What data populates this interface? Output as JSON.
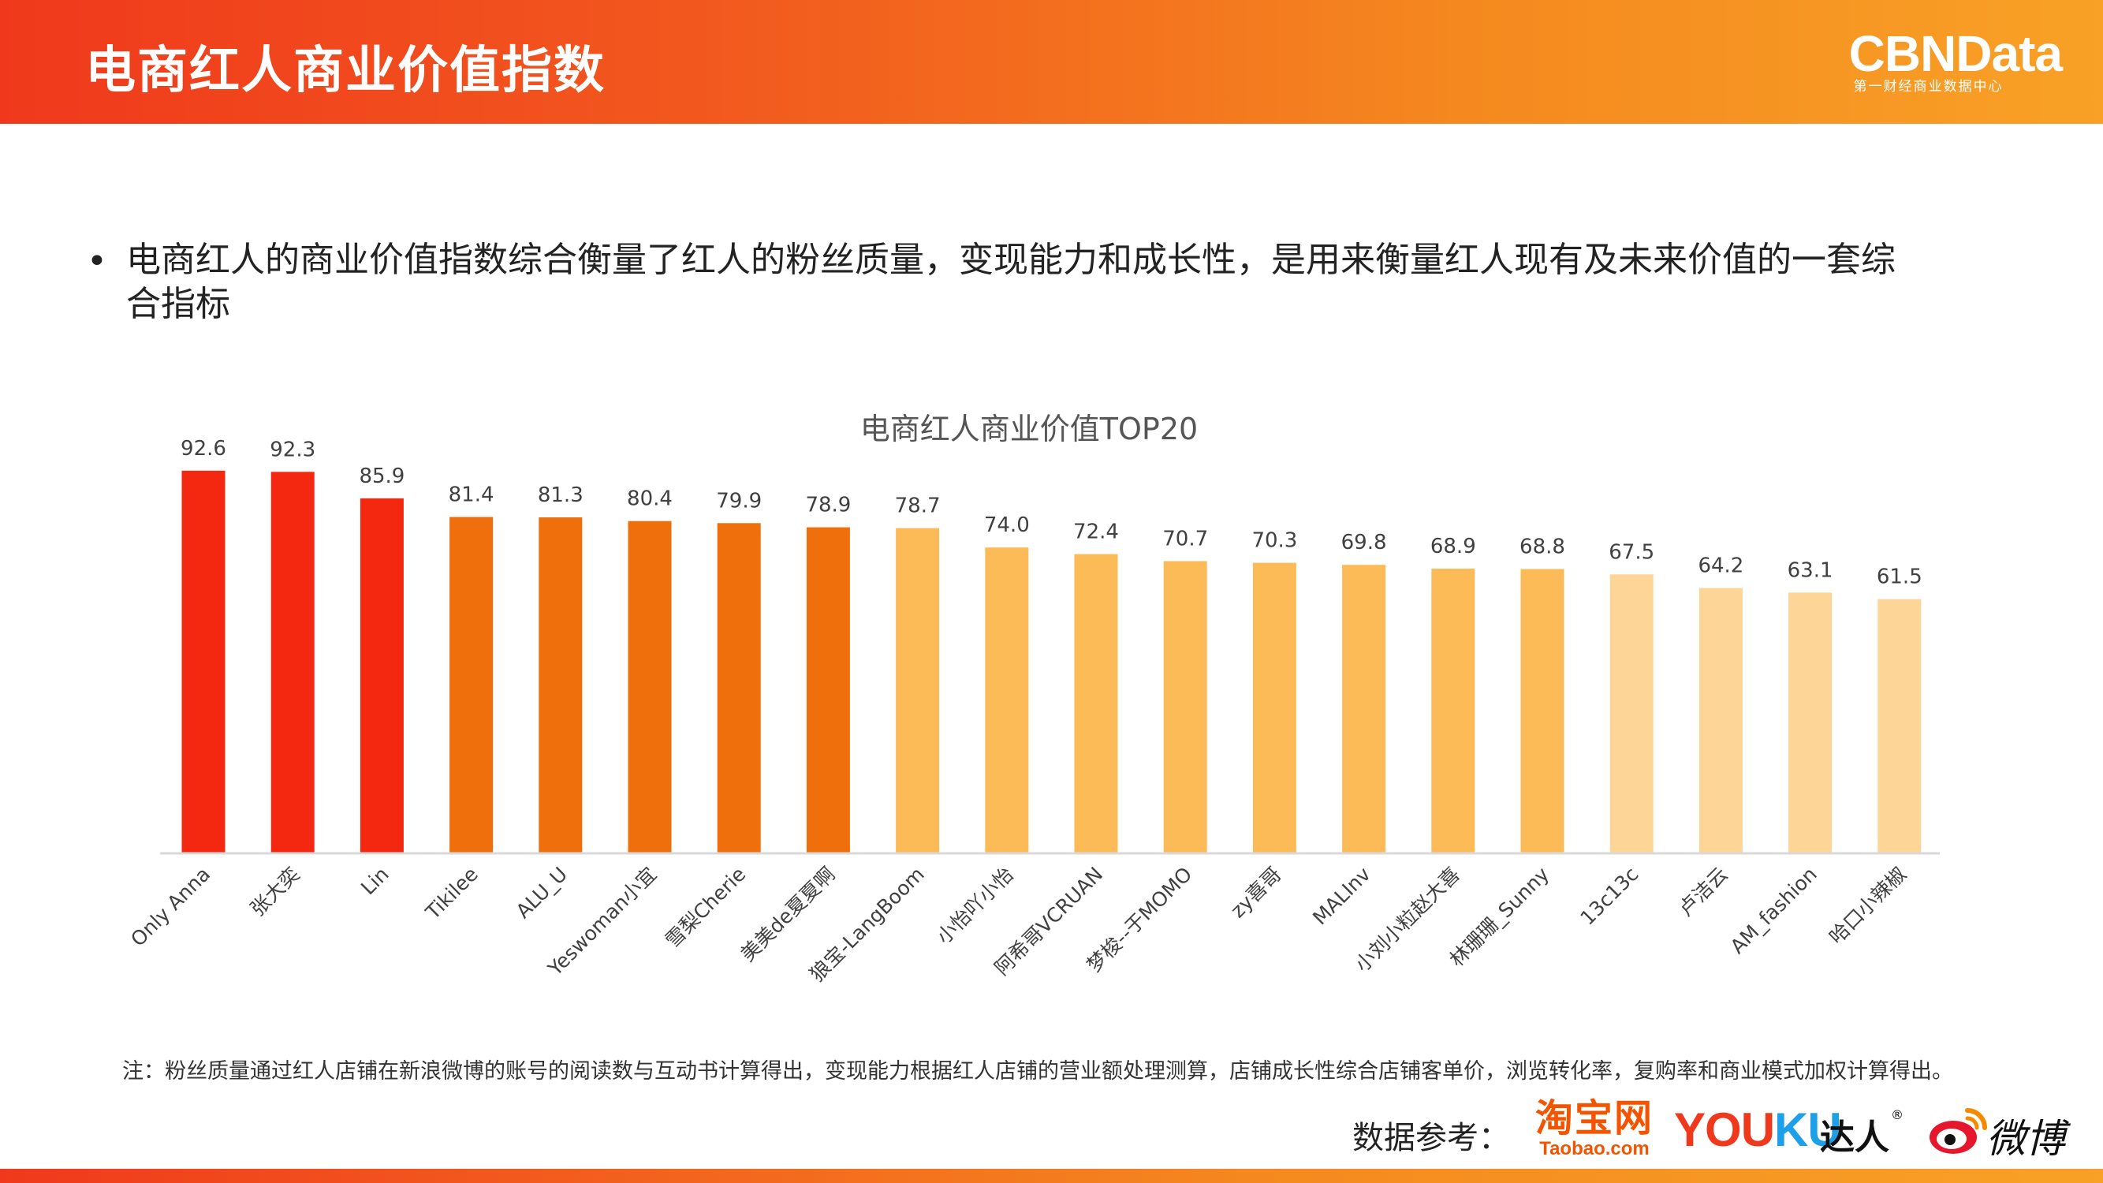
{
  "header": {
    "title": "电商红人商业价值指数"
  },
  "logo": {
    "main": "CBNData",
    "sub": "第一财经商业数据中心"
  },
  "intro": {
    "bullet": "•",
    "text": "电商红人的商业价值指数综合衡量了红人的粉丝质量，变现能力和成长性，是用来衡量红人现有及未来价值的一套综合指标"
  },
  "chart_data": {
    "type": "bar",
    "title": "电商红人商业价值TOP20",
    "xlabel": "",
    "ylabel": "",
    "grid": false,
    "legend": "none",
    "ylim": [
      0,
      100
    ],
    "categories": [
      "Only Anna",
      "张大奕",
      "Lin",
      "Tikilee",
      "ALU_U",
      "Yeswoman小宜",
      "雪梨Cherie",
      "美美de夏夏啊",
      "狼宝-LangBoom",
      "小怡吖小怡",
      "阿希哥VCRUAN",
      "梦梭--于MOMO",
      "zy喜哥",
      "MALInv",
      "小刘小粒赵大喜",
      "林珊珊_Sunny",
      "13c13c",
      "卢洁云",
      "AM_fashion",
      "哈口小辣椒"
    ],
    "values": [
      92.6,
      92.3,
      85.9,
      81.4,
      81.3,
      80.4,
      79.9,
      78.9,
      78.7,
      74.0,
      72.4,
      70.7,
      70.3,
      69.8,
      68.9,
      68.8,
      67.5,
      64.2,
      63.1,
      61.5
    ],
    "value_labels": [
      "92.6",
      "92.3",
      "85.9",
      "81.4",
      "81.3",
      "80.4",
      "79.9",
      "78.9",
      "78.7",
      "74.0",
      "72.4",
      "70.7",
      "70.3",
      "69.8",
      "68.9",
      "68.8",
      "67.5",
      "64.2",
      "63.1",
      "61.5"
    ],
    "bar_colors": [
      "#f42811",
      "#f42811",
      "#f42811",
      "#ee6f0b",
      "#ee6f0b",
      "#ee6f0b",
      "#ee6f0b",
      "#ee6f0b",
      "#fdbb58",
      "#fdbb58",
      "#fdbb58",
      "#fdbb58",
      "#fdbb58",
      "#fdbb58",
      "#fdbb58",
      "#fdbb58",
      "#fdd597",
      "#fdd597",
      "#fdd597",
      "#fdd597"
    ],
    "axis_color": "#d9d9d9"
  },
  "note": "注：粉丝质量通过红人店铺在新浪微博的账号的阅读数与互动书计算得出，变现能力根据红人店铺的营业额处理测算，店铺成长性综合店铺客单价，浏览转化率，复购率和商业模式加权计算得出。",
  "sources": {
    "label": "数据参考：",
    "taobao_cn": "淘宝网",
    "taobao_en": "Taobao.com",
    "youku_you": "YOU",
    "youku_ku": "KU",
    "daren": "达人",
    "reg": "®",
    "weibo": "微博",
    "icons": [
      "taobao-logo",
      "youku-logo",
      "weibo-eye-icon"
    ]
  },
  "colors": {
    "brand_orange": "#f5891f",
    "brand_red": "#f0391c"
  }
}
